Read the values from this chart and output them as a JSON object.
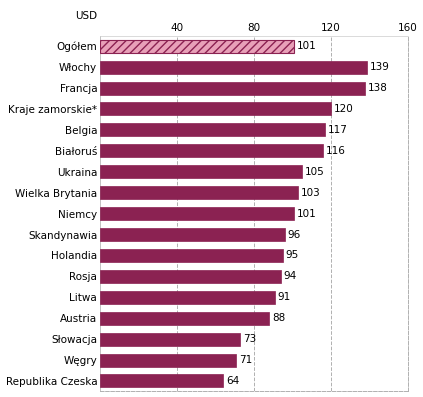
{
  "categories": [
    "Republika Czeska",
    "Węgry",
    "Słowacja",
    "Austria",
    "Litwa",
    "Rosja",
    "Holandia",
    "Skandynawia",
    "Niemcy",
    "Wielka Brytania",
    "Ukraina",
    "Białoruś",
    "Belgia",
    "Kraje zamorskie*",
    "Francja",
    "Włochy",
    "Ogółem"
  ],
  "values": [
    64,
    71,
    73,
    88,
    91,
    94,
    95,
    96,
    101,
    103,
    105,
    116,
    117,
    120,
    138,
    139,
    101
  ],
  "bar_color": "#8B2252",
  "hatch_face_color": "#E8A0B8",
  "xlim": [
    0,
    160
  ],
  "xticks": [
    40,
    80,
    120,
    160
  ],
  "background_color": "#ffffff",
  "grid_color": "#b0b0b0",
  "label_fontsize": 7.5,
  "value_fontsize": 7.5,
  "xlabel": "USD"
}
